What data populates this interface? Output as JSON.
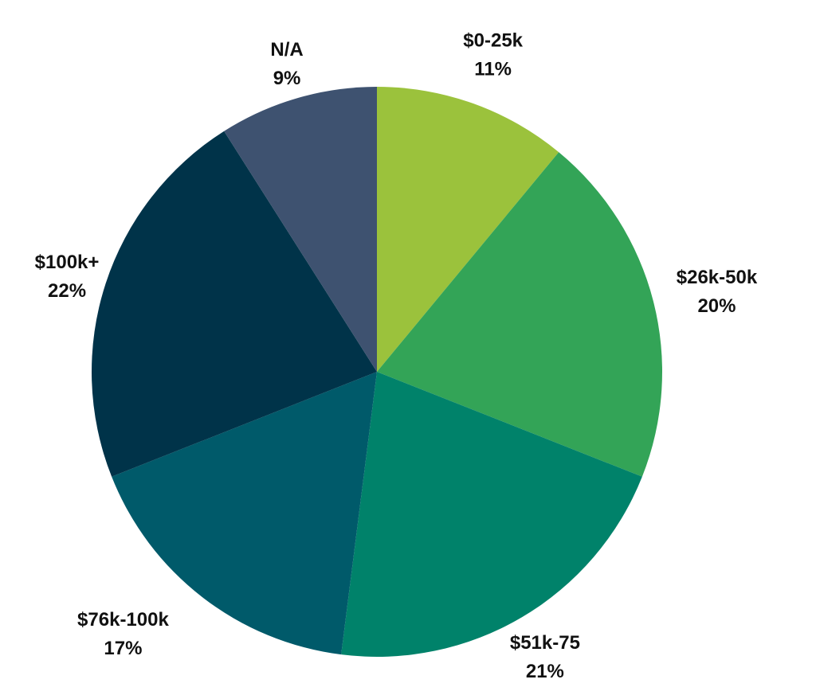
{
  "chart_data": {
    "type": "pie",
    "title": "",
    "start": "top",
    "direction": "clockwise",
    "slices": [
      {
        "label": "$0-25k",
        "value": 11,
        "value_label": "11%",
        "color": "#9BC23C"
      },
      {
        "label": "$26k-50k",
        "value": 20,
        "value_label": "20%",
        "color": "#33A457"
      },
      {
        "label": "$51k-75",
        "value": 21,
        "value_label": "21%",
        "color": "#00826A"
      },
      {
        "label": "$76k-100k",
        "value": 17,
        "value_label": "17%",
        "color": "#005A6A"
      },
      {
        "label": "$100k+",
        "value": 22,
        "value_label": "22%",
        "color": "#003349"
      },
      {
        "label": "N/A",
        "value": 9,
        "value_label": "9%",
        "color": "#3E5270"
      }
    ]
  }
}
